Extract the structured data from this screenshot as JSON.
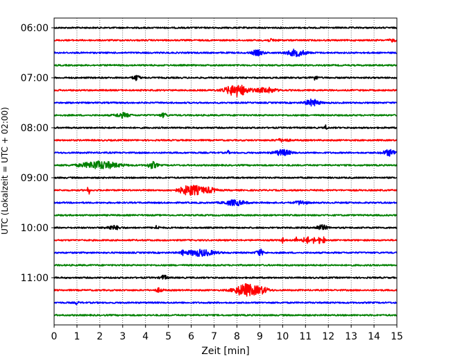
{
  "chart_data": {
    "type": "line",
    "title": "",
    "xlabel": "Zeit  [min]",
    "ylabel": "UTC (Lokalzeit = UTC + 02:00)",
    "xlim": [
      0,
      15
    ],
    "x_ticks": [
      0,
      1,
      2,
      3,
      4,
      5,
      6,
      7,
      8,
      9,
      10,
      11,
      12,
      13,
      14,
      15
    ],
    "y_ticks": [
      "06:00",
      "07:00",
      "08:00",
      "09:00",
      "10:00",
      "11:00"
    ],
    "trace_interval_minutes": 15,
    "grid": "vertical dotted",
    "legend": "none",
    "trace_colors": [
      "#000000",
      "#ff0000",
      "#0000ff",
      "#008000"
    ],
    "series": [
      {
        "start": "06:00",
        "color": "#000000",
        "events": []
      },
      {
        "start": "06:15",
        "color": "#ff0000",
        "events": [
          {
            "t": 9.5,
            "amp": 0.15,
            "dur": 0.5
          },
          {
            "t": 14.8,
            "amp": 0.2,
            "dur": 0.3
          }
        ]
      },
      {
        "start": "06:30",
        "color": "#0000ff",
        "events": [
          {
            "t": 8.9,
            "amp": 0.4,
            "dur": 0.5
          },
          {
            "t": 10.6,
            "amp": 0.5,
            "dur": 0.8
          }
        ]
      },
      {
        "start": "06:45",
        "color": "#008000",
        "events": []
      },
      {
        "start": "07:00",
        "color": "#000000",
        "events": [
          {
            "t": 3.6,
            "amp": 0.4,
            "dur": 0.3
          },
          {
            "t": 11.4,
            "amp": 0.3,
            "dur": 0.3
          }
        ]
      },
      {
        "start": "07:15",
        "color": "#ff0000",
        "events": [
          {
            "t": 8.0,
            "amp": 0.9,
            "dur": 1.0
          },
          {
            "t": 9.3,
            "amp": 0.4,
            "dur": 0.8
          }
        ]
      },
      {
        "start": "07:30",
        "color": "#0000ff",
        "events": [
          {
            "t": 11.3,
            "amp": 0.5,
            "dur": 0.6
          }
        ]
      },
      {
        "start": "07:45",
        "color": "#008000",
        "events": [
          {
            "t": 3.0,
            "amp": 0.35,
            "dur": 0.6
          },
          {
            "t": 4.8,
            "amp": 0.3,
            "dur": 0.3
          }
        ]
      },
      {
        "start": "08:00",
        "color": "#000000",
        "events": [
          {
            "t": 11.9,
            "amp": 0.45,
            "dur": 0.1
          }
        ]
      },
      {
        "start": "08:15",
        "color": "#ff0000",
        "events": [
          {
            "t": 10.0,
            "amp": 0.2,
            "dur": 0.6
          }
        ]
      },
      {
        "start": "08:30",
        "color": "#0000ff",
        "events": [
          {
            "t": 7.6,
            "amp": 0.35,
            "dur": 0.1
          },
          {
            "t": 10.0,
            "amp": 0.45,
            "dur": 0.7
          },
          {
            "t": 14.7,
            "amp": 0.45,
            "dur": 0.6
          }
        ]
      },
      {
        "start": "08:45",
        "color": "#008000",
        "events": [
          {
            "t": 2.0,
            "amp": 0.6,
            "dur": 1.6
          },
          {
            "t": 4.3,
            "amp": 0.5,
            "dur": 0.4
          }
        ]
      },
      {
        "start": "09:00",
        "color": "#000000",
        "events": []
      },
      {
        "start": "09:15",
        "color": "#ff0000",
        "events": [
          {
            "t": 1.5,
            "amp": 0.85,
            "dur": 0.1
          },
          {
            "t": 6.0,
            "amp": 0.8,
            "dur": 1.0
          },
          {
            "t": 6.8,
            "amp": 0.35,
            "dur": 0.6
          }
        ]
      },
      {
        "start": "09:30",
        "color": "#0000ff",
        "events": [
          {
            "t": 7.9,
            "amp": 0.4,
            "dur": 0.9
          },
          {
            "t": 10.8,
            "amp": 0.3,
            "dur": 0.5
          }
        ]
      },
      {
        "start": "09:45",
        "color": "#008000",
        "events": []
      },
      {
        "start": "10:00",
        "color": "#000000",
        "events": [
          {
            "t": 2.6,
            "amp": 0.3,
            "dur": 0.6
          },
          {
            "t": 4.5,
            "amp": 0.3,
            "dur": 0.2
          },
          {
            "t": 11.7,
            "amp": 0.4,
            "dur": 0.5
          }
        ]
      },
      {
        "start": "10:15",
        "color": "#ff0000",
        "events": [
          {
            "t": 10.0,
            "amp": 0.5,
            "dur": 0.1
          },
          {
            "t": 10.6,
            "amp": 0.5,
            "dur": 0.1
          },
          {
            "t": 10.9,
            "amp": 0.55,
            "dur": 0.1
          },
          {
            "t": 11.1,
            "amp": 0.5,
            "dur": 0.1
          },
          {
            "t": 11.35,
            "amp": 0.5,
            "dur": 0.1
          },
          {
            "t": 11.6,
            "amp": 0.5,
            "dur": 0.1
          },
          {
            "t": 11.8,
            "amp": 0.5,
            "dur": 0.1
          }
        ]
      },
      {
        "start": "10:30",
        "color": "#0000ff",
        "events": [
          {
            "t": 5.6,
            "amp": 0.5,
            "dur": 0.1
          },
          {
            "t": 6.4,
            "amp": 0.5,
            "dur": 1.2
          },
          {
            "t": 9.0,
            "amp": 0.5,
            "dur": 0.3
          }
        ]
      },
      {
        "start": "10:45",
        "color": "#008000",
        "events": []
      },
      {
        "start": "11:00",
        "color": "#000000",
        "events": [
          {
            "t": 4.8,
            "amp": 0.35,
            "dur": 0.3
          }
        ]
      },
      {
        "start": "11:15",
        "color": "#ff0000",
        "events": [
          {
            "t": 8.4,
            "amp": 0.95,
            "dur": 1.0
          },
          {
            "t": 9.1,
            "amp": 0.4,
            "dur": 0.6
          },
          {
            "t": 4.6,
            "amp": 0.3,
            "dur": 0.3
          }
        ]
      },
      {
        "start": "11:30",
        "color": "#0000ff",
        "events": [
          {
            "t": 1.0,
            "amp": 0.4,
            "dur": 0.1
          }
        ]
      },
      {
        "start": "11:45",
        "color": "#008000",
        "events": []
      }
    ]
  }
}
